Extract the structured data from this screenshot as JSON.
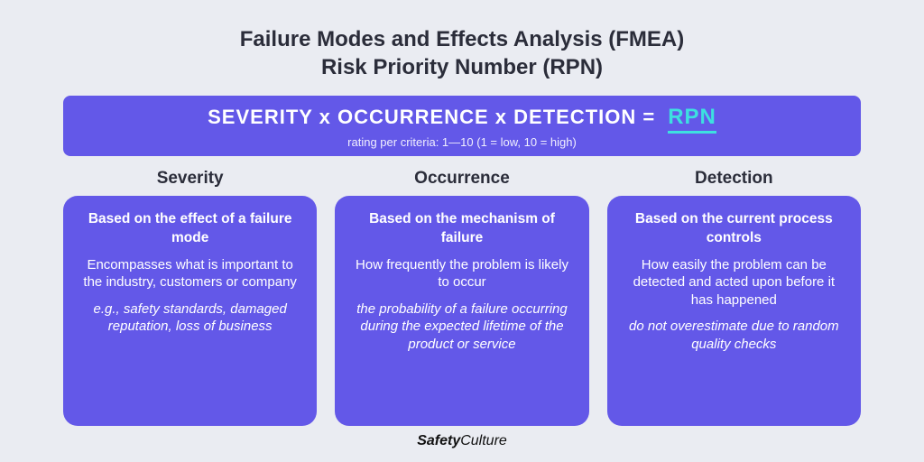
{
  "colors": {
    "page_bg": "#eaecf2",
    "card_bg": "#6358e8",
    "title_text": "#2b2d3a",
    "accent": "#3de0e0",
    "white": "#ffffff"
  },
  "title": {
    "line1": "Failure Modes and Effects Analysis (FMEA)",
    "line2": "Risk Priority Number (RPN)",
    "fontsize": 24,
    "fontweight": 800
  },
  "formula": {
    "lhs": "SEVERITY x OCCURRENCE x DETECTION =",
    "rhs": "RPN",
    "sub": "rating per criteria: 1—10 (1 = low, 10 = high)",
    "fontsize": 22,
    "sub_fontsize": 13,
    "bar_radius": 8
  },
  "columns": [
    {
      "head": "Severity",
      "lead": "Based on the effect of a failure mode",
      "body": "Encompasses what is important to the industry, customers or company",
      "note": "e.g., safety standards, damaged reputation, loss of business"
    },
    {
      "head": "Occurrence",
      "lead": "Based on the mechanism of failure",
      "body": "How frequently the problem is likely to occur",
      "note": "the probability of a failure occurring during the expected lifetime of the product or service"
    },
    {
      "head": "Detection",
      "lead": "Based on the current process controls",
      "body": "How easily the problem can be detected and acted upon before it has happened",
      "note": "do not overestimate due to random quality checks"
    }
  ],
  "card_style": {
    "radius": 16,
    "fontsize": 15,
    "lead_fontsize": 15.5,
    "head_fontsize": 19
  },
  "footer": {
    "bold": "Safety",
    "light": "Culture"
  }
}
